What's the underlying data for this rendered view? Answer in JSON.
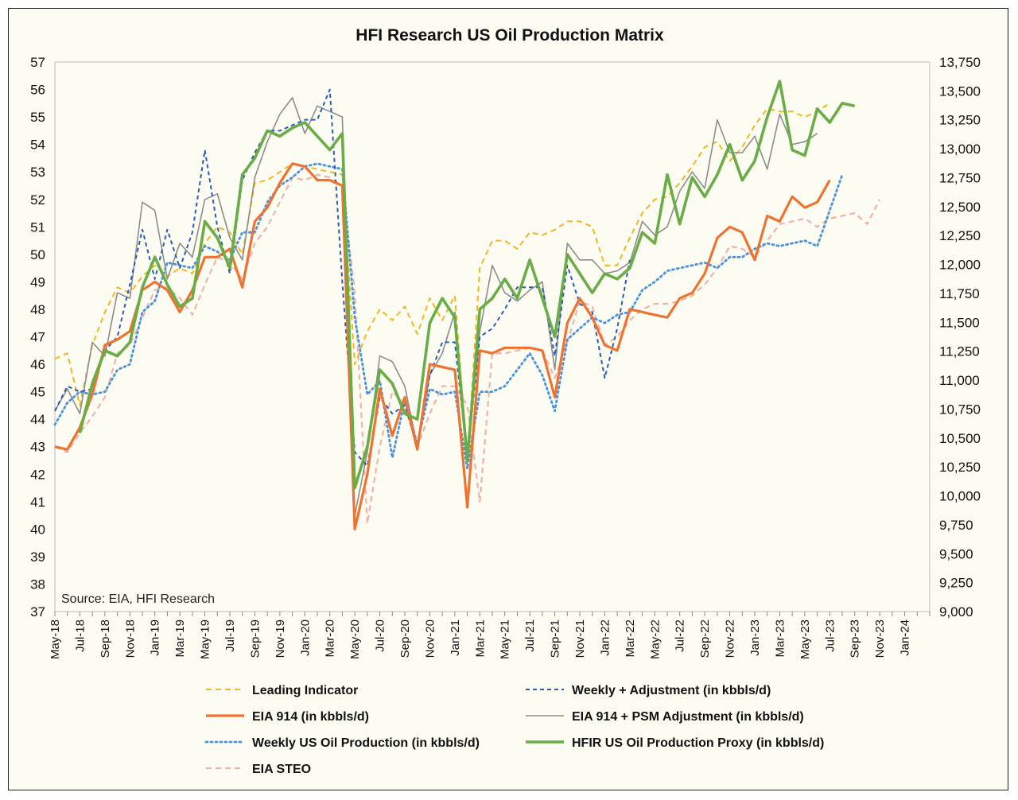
{
  "chart_data": {
    "type": "line",
    "title": "HFI Research US Oil Production Matrix",
    "source": "Source: EIA, HFI Research",
    "left_axis": {
      "min": 37,
      "max": 57,
      "ticks": [
        "57",
        "56",
        "55",
        "54",
        "53",
        "52",
        "51",
        "50",
        "49",
        "48",
        "47",
        "46",
        "45",
        "44",
        "43",
        "42",
        "41",
        "40",
        "39",
        "38",
        "37"
      ]
    },
    "right_axis": {
      "min": 9000,
      "max": 13750,
      "ticks": [
        "13,750",
        "13,500",
        "13,250",
        "13,000",
        "12,750",
        "12,500",
        "12,250",
        "12,000",
        "11,750",
        "11,500",
        "11,250",
        "11,000",
        "10,750",
        "10,500",
        "10,250",
        "10,000",
        "9,750",
        "9,500",
        "9,250",
        "9,000"
      ]
    },
    "x_tick_labels": [
      "May-18",
      "Jul-18",
      "Sep-18",
      "Nov-18",
      "Jan-19",
      "Mar-19",
      "May-19",
      "Jul-19",
      "Sep-19",
      "Nov-19",
      "Jan-20",
      "Mar-20",
      "May-20",
      "Jul-20",
      "Sep-20",
      "Nov-20",
      "Jan-21",
      "Mar-21",
      "May-21",
      "Jul-21",
      "Sep-21",
      "Nov-21",
      "Jan-22",
      "Mar-22",
      "May-22",
      "Jul-22",
      "Sep-22",
      "Nov-22",
      "Jan-23",
      "Mar-23",
      "May-23",
      "Jul-23",
      "Sep-23",
      "Nov-23",
      "Jan-24"
    ],
    "series": [
      {
        "name": "Leading Indicator",
        "axis": "left",
        "color": "#f2b71f",
        "dash": "7,5",
        "width": 2,
        "values": [
          46.2,
          46.4,
          44.5,
          46.7,
          47.9,
          48.8,
          48.6,
          49.2,
          49.6,
          49.2,
          49.5,
          49.3,
          50.4,
          51.0,
          50.8,
          50.0,
          52.6,
          52.7,
          53.0,
          53.3,
          53.2,
          53.1,
          53.0,
          52.9,
          46.0,
          47.2,
          48.0,
          47.6,
          48.1,
          47.1,
          48.4,
          47.6,
          48.5,
          42.5,
          49.5,
          50.5,
          50.5,
          50.2,
          50.8,
          50.7,
          50.9,
          51.2,
          51.2,
          51.0,
          49.6,
          49.6,
          50.6,
          51.5,
          52.0,
          52.1,
          52.6,
          53.2,
          53.9,
          54.1,
          53.4,
          53.9,
          54.7,
          55.3,
          55.2,
          55.2,
          55.0,
          55.2,
          55.5,
          null,
          null,
          null,
          null,
          null,
          null,
          null
        ]
      },
      {
        "name": "Weekly + Adjustment (in kbbls/d)",
        "axis": "left",
        "color": "#2a5db0",
        "dash": "5,4",
        "width": 2,
        "values": [
          44.3,
          45.2,
          45.0,
          45.1,
          46.5,
          47.0,
          48.9,
          50.9,
          49.1,
          50.9,
          49.5,
          50.8,
          53.8,
          51.0,
          49.3,
          52.7,
          53.7,
          54.5,
          54.5,
          54.7,
          54.9,
          54.9,
          56.0,
          49.0,
          42.8,
          42.3,
          44.8,
          44.2,
          44.5,
          43.0,
          45.6,
          46.8,
          46.8,
          42.6,
          47.0,
          47.3,
          48.0,
          48.8,
          48.8,
          48.8,
          46.3,
          49.6,
          48.2,
          47.9,
          45.5,
          47.3,
          49.8,
          null,
          null,
          null,
          null,
          null,
          null,
          null,
          null,
          null,
          null,
          null,
          null,
          null,
          null,
          null,
          null,
          null,
          null,
          null,
          null,
          null,
          null,
          null
        ]
      },
      {
        "name": "EIA 914 (in kbbls/d)",
        "axis": "left",
        "color": "#ee7330",
        "dash": "",
        "width": 3.2,
        "values": [
          43.0,
          42.9,
          43.7,
          44.9,
          46.7,
          46.9,
          47.2,
          48.7,
          49.0,
          48.7,
          47.9,
          48.7,
          49.9,
          49.9,
          50.2,
          48.8,
          51.2,
          51.7,
          52.6,
          53.3,
          53.2,
          52.7,
          52.7,
          52.5,
          40.0,
          42.0,
          45.1,
          43.4,
          44.8,
          42.9,
          46.0,
          45.9,
          45.8,
          40.8,
          46.5,
          46.4,
          46.6,
          46.6,
          46.6,
          46.5,
          44.8,
          47.5,
          48.4,
          47.7,
          46.7,
          46.5,
          48.0,
          47.9,
          47.8,
          47.7,
          48.4,
          48.6,
          49.3,
          50.6,
          51.0,
          50.8,
          49.8,
          51.4,
          51.2,
          52.1,
          51.7,
          51.9,
          52.7,
          null,
          null,
          null,
          null,
          null,
          null,
          null
        ]
      },
      {
        "name": "EIA 914 + PSM Adjustment (in kbbls/d)",
        "axis": "left",
        "color": "#8c8c8c",
        "dash": "",
        "width": 1.6,
        "values": [
          44.3,
          45.1,
          44.2,
          46.8,
          46.3,
          48.6,
          48.4,
          51.9,
          51.6,
          49.1,
          50.4,
          49.9,
          52.0,
          52.2,
          50.6,
          49.8,
          52.8,
          54.1,
          55.1,
          55.7,
          54.4,
          55.4,
          55.2,
          55.0,
          40.5,
          42.8,
          46.3,
          46.1,
          45.2,
          43.0,
          45.6,
          46.4,
          47.9,
          42.7,
          47.2,
          49.6,
          48.6,
          48.3,
          48.7,
          49.0,
          45.8,
          50.4,
          49.8,
          49.8,
          49.3,
          49.4,
          49.7,
          51.2,
          50.7,
          51.0,
          52.3,
          53.0,
          52.4,
          54.9,
          53.7,
          53.7,
          54.3,
          53.1,
          55.1,
          54.0,
          54.1,
          54.4,
          null,
          null,
          null,
          null,
          null,
          null,
          null,
          null
        ]
      },
      {
        "name": "Weekly US Oil Production (in kbbls/d)",
        "axis": "left",
        "color": "#4b92dc",
        "dash": "2,4",
        "width": 2.8,
        "values": [
          43.8,
          44.6,
          45.0,
          44.9,
          45.0,
          45.8,
          46.0,
          47.9,
          48.3,
          49.7,
          49.6,
          49.5,
          50.3,
          50.1,
          49.8,
          50.8,
          50.8,
          51.9,
          52.5,
          52.8,
          53.2,
          53.3,
          53.2,
          53.1,
          47.7,
          44.9,
          45.4,
          42.6,
          44.7,
          43.1,
          45.1,
          44.9,
          45.0,
          42.2,
          45.0,
          45.0,
          45.2,
          45.8,
          46.4,
          45.6,
          44.3,
          46.9,
          47.3,
          47.7,
          47.5,
          47.8,
          47.9,
          48.7,
          49.0,
          49.4,
          49.5,
          49.6,
          49.7,
          49.5,
          49.9,
          49.9,
          50.2,
          50.4,
          50.3,
          50.4,
          50.5,
          50.3,
          51.6,
          52.9,
          null,
          null,
          null,
          null,
          null,
          null
        ]
      },
      {
        "name": "HFIR US Oil Production Proxy (in kbbls/d)",
        "axis": "left",
        "color": "#6aac45",
        "dash": "",
        "width": 3.6,
        "values": [
          null,
          null,
          43.5,
          45.3,
          46.5,
          46.3,
          46.8,
          48.8,
          49.9,
          48.9,
          48.1,
          48.4,
          51.2,
          50.6,
          49.5,
          52.9,
          53.5,
          54.5,
          54.3,
          54.6,
          54.8,
          54.3,
          53.8,
          54.4,
          41.5,
          43.0,
          45.8,
          45.3,
          44.2,
          44.0,
          47.5,
          48.4,
          47.7,
          42.5,
          48.0,
          48.4,
          49.1,
          48.4,
          49.8,
          48.4,
          47.0,
          50.0,
          49.3,
          48.6,
          49.3,
          49.1,
          49.5,
          50.8,
          50.4,
          52.9,
          51.1,
          52.8,
          52.1,
          52.9,
          54.0,
          52.7,
          53.4,
          55.0,
          56.3,
          53.8,
          53.6,
          55.3,
          54.8,
          55.5,
          55.4,
          null,
          null,
          null,
          null,
          null
        ]
      },
      {
        "name": "EIA STEO",
        "axis": "left",
        "color": "#f1b2a6",
        "dash": "7,5",
        "width": 2.2,
        "values": [
          43.0,
          42.8,
          43.5,
          44.1,
          44.8,
          46.4,
          46.7,
          47.7,
          48.7,
          48.8,
          48.4,
          47.8,
          48.9,
          49.9,
          49.7,
          49.1,
          50.4,
          51.0,
          51.9,
          52.8,
          52.7,
          52.9,
          52.8,
          52.5,
          48.6,
          40.2,
          43.0,
          45.0,
          44.6,
          43.0,
          44.2,
          45.2,
          45.2,
          44.5,
          41.0,
          46.4,
          46.4,
          46.5,
          46.6,
          46.5,
          45.5,
          46.8,
          48.3,
          48.1,
          46.7,
          47.0,
          47.6,
          48.0,
          48.2,
          48.2,
          48.3,
          48.5,
          48.9,
          49.5,
          50.3,
          50.2,
          49.9,
          50.5,
          51.1,
          51.2,
          51.3,
          51.0,
          51.3,
          51.4,
          51.5,
          51.1,
          52.0,
          null,
          null,
          null
        ]
      }
    ]
  }
}
